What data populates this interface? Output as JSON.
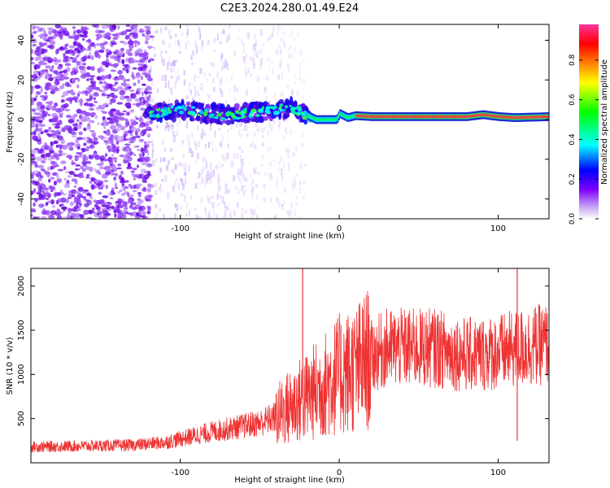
{
  "title": "C2E3.2024.280.01.49.E24",
  "chart_data": [
    {
      "type": "heatmap",
      "xlabel": "Height of straight line (km)",
      "ylabel": "Frequency (Hz)",
      "xlim": [
        -194,
        132
      ],
      "ylim": [
        -50,
        48
      ],
      "xticks": [
        -100,
        0,
        100
      ],
      "yticks": [
        -40,
        -20,
        0,
        20,
        40
      ],
      "colorbar": {
        "label": "Normalized spectral amplitude",
        "range": [
          0,
          0.98
        ],
        "ticks": [
          0.0,
          0.2,
          0.4,
          0.6,
          0.8
        ],
        "tick_labels": [
          "0.0",
          "0.2",
          "0.4",
          "0.6",
          "0.8"
        ],
        "colormap": [
          "#ffffff",
          "#8a2be2",
          "#0000ff",
          "#00ffff",
          "#00ff00",
          "#ffff00",
          "#ff8000",
          "#ff0000",
          "#ff66aa"
        ]
      },
      "band_center_hz": [
        [
          -122,
          2
        ],
        [
          -110,
          4
        ],
        [
          -100,
          5
        ],
        [
          -90,
          4
        ],
        [
          -80,
          3
        ],
        [
          -70,
          2
        ],
        [
          -60,
          3
        ],
        [
          -50,
          4
        ],
        [
          -40,
          5
        ],
        [
          -30,
          6
        ],
        [
          -25,
          4
        ],
        [
          -20,
          2
        ],
        [
          -15,
          0
        ],
        [
          -8,
          0
        ],
        [
          -2,
          0
        ],
        [
          0,
          3
        ],
        [
          5,
          1
        ],
        [
          10,
          2
        ],
        [
          20,
          1.5
        ],
        [
          40,
          1.5
        ],
        [
          60,
          1.5
        ],
        [
          80,
          1.5
        ],
        [
          90,
          2.5
        ],
        [
          100,
          1.5
        ],
        [
          110,
          1
        ],
        [
          132,
          1.5
        ]
      ],
      "noise_region_km": [
        -194,
        -122
      ],
      "grid": false
    },
    {
      "type": "line",
      "xlabel": "Height of straight line (km)",
      "ylabel": "SNR (10 * v/v)",
      "xlim": [
        -194,
        132
      ],
      "ylim": [
        0,
        2200
      ],
      "xticks": [
        -100,
        0,
        100
      ],
      "yticks": [
        500,
        1000,
        1500,
        2000
      ],
      "color": "#ee3333",
      "envelope": {
        "x": [
          -194,
          -160,
          -130,
          -110,
          -95,
          -80,
          -65,
          -50,
          -40,
          -30,
          -20,
          -10,
          0,
          10,
          20,
          30,
          40,
          60,
          80,
          100,
          115,
          132
        ],
        "y": [
          180,
          190,
          200,
          230,
          290,
          350,
          400,
          450,
          520,
          650,
          750,
          870,
          1000,
          1050,
          1200,
          1300,
          1300,
          1300,
          1220,
          1250,
          1300,
          1350
        ]
      },
      "spikes": [
        {
          "x": -23,
          "y": 2200
        },
        {
          "x": 112,
          "y": 2200
        },
        {
          "x": 112,
          "y": 250
        }
      ],
      "grid": false
    }
  ]
}
